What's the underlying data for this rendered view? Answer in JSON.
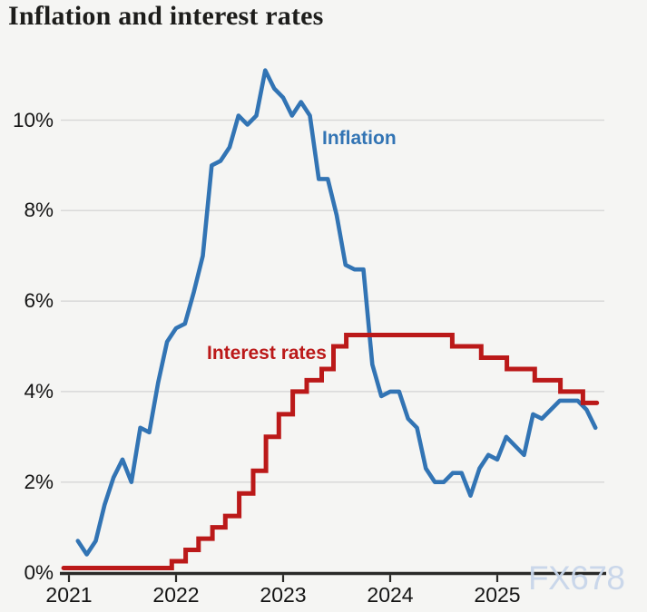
{
  "header": {
    "title": "Inflation and interest rates"
  },
  "watermark": {
    "text": "FX678"
  },
  "colors": {
    "background": "#f5f5f3",
    "grid": "#d9d9d8",
    "axis": "#2a2a28",
    "text": "#141414",
    "inflation": "#3274b4",
    "interest": "#bb1919",
    "watermark": "#c8d6ea"
  },
  "chart_data": {
    "type": "line",
    "title": "Inflation and interest rates",
    "xlabel": "",
    "ylabel": "",
    "grid": true,
    "x_axis": {
      "range": [
        2020.93,
        2026.02
      ],
      "tick_values": [
        2021,
        2022,
        2023,
        2024,
        2025
      ],
      "tick_labels": [
        "2021",
        "2022",
        "2023",
        "2024",
        "2025"
      ]
    },
    "y_axis": {
      "range": [
        0,
        11.6
      ],
      "unit": "%",
      "tick_values": [
        0,
        2,
        4,
        6,
        8,
        10
      ],
      "tick_labels": [
        "0%",
        "2%",
        "4%",
        "6%",
        "8%",
        "10%"
      ]
    },
    "series": [
      {
        "name": "Inflation",
        "annotation": "Inflation",
        "style": "line",
        "frequency": "monthly",
        "x_first": 2021.083,
        "x_last": 2025.917,
        "values": [
          0.7,
          0.4,
          0.7,
          1.5,
          2.1,
          2.5,
          2.0,
          3.2,
          3.1,
          4.2,
          5.1,
          5.4,
          5.5,
          6.2,
          7.0,
          9.0,
          9.1,
          9.4,
          10.1,
          9.9,
          10.1,
          11.1,
          10.7,
          10.5,
          10.1,
          10.4,
          10.1,
          8.7,
          8.7,
          7.9,
          6.8,
          6.7,
          6.7,
          4.6,
          3.9,
          4.0,
          4.0,
          3.4,
          3.2,
          2.3,
          2.0,
          2.0,
          2.2,
          2.2,
          1.7,
          2.3,
          2.6,
          2.5,
          3.0,
          2.8,
          2.6,
          3.5,
          3.4,
          3.6,
          3.8,
          3.8,
          3.8,
          3.6,
          3.2
        ]
      },
      {
        "name": "Interest rates",
        "annotation": "Interest rates",
        "style": "step",
        "segments": [
          [
            2020.95,
            2021.96,
            0.1
          ],
          [
            2021.96,
            2022.09,
            0.25
          ],
          [
            2022.09,
            2022.21,
            0.5
          ],
          [
            2022.21,
            2022.34,
            0.75
          ],
          [
            2022.34,
            2022.46,
            1.0
          ],
          [
            2022.46,
            2022.59,
            1.25
          ],
          [
            2022.59,
            2022.72,
            1.75
          ],
          [
            2022.72,
            2022.84,
            2.25
          ],
          [
            2022.84,
            2022.96,
            3.0
          ],
          [
            2022.96,
            2023.09,
            3.5
          ],
          [
            2023.09,
            2023.22,
            4.0
          ],
          [
            2023.22,
            2023.36,
            4.25
          ],
          [
            2023.36,
            2023.47,
            4.5
          ],
          [
            2023.47,
            2023.59,
            5.0
          ],
          [
            2023.59,
            2024.58,
            5.25
          ],
          [
            2024.58,
            2024.85,
            5.0
          ],
          [
            2024.85,
            2025.09,
            4.75
          ],
          [
            2025.09,
            2025.35,
            4.5
          ],
          [
            2025.35,
            2025.59,
            4.25
          ],
          [
            2025.59,
            2025.8,
            4.0
          ],
          [
            2025.8,
            2025.93,
            3.75
          ]
        ]
      }
    ]
  }
}
